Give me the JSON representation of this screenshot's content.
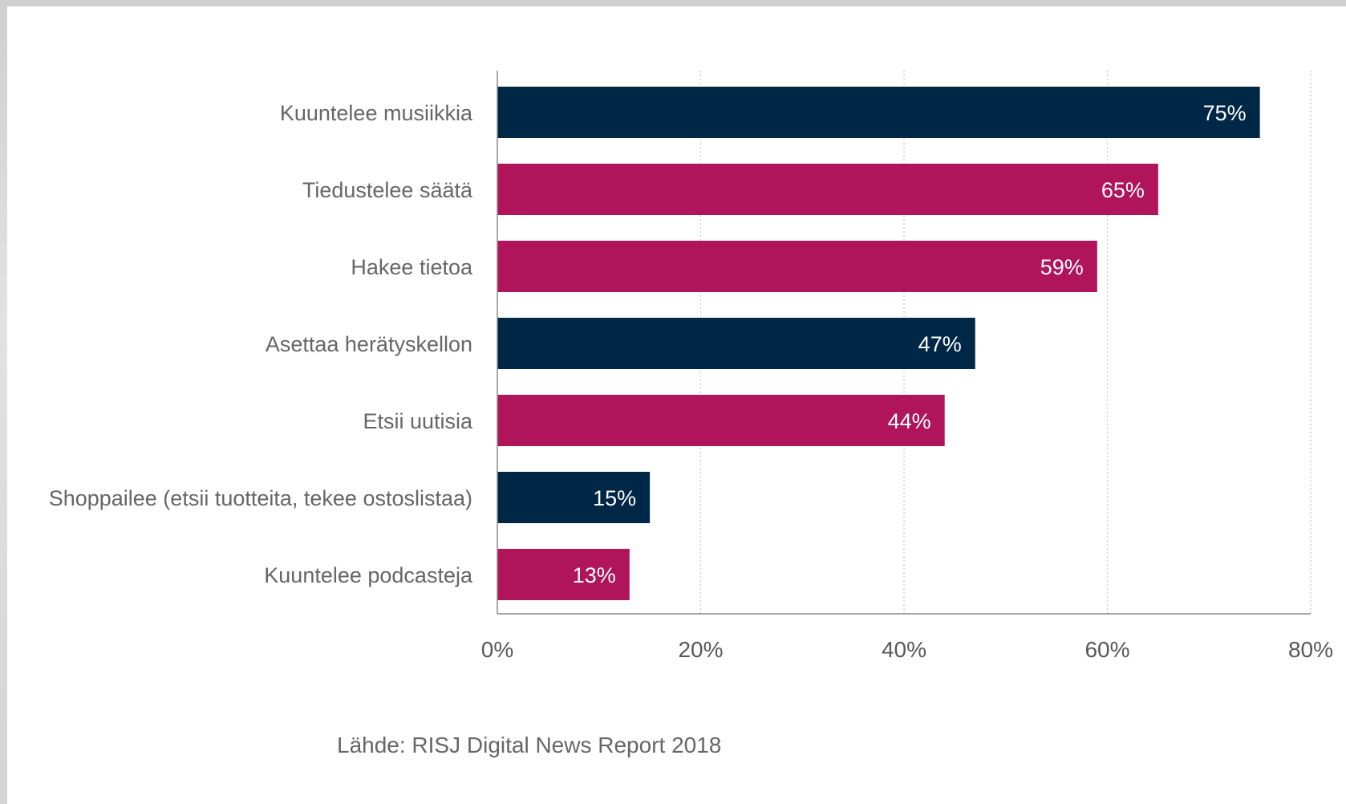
{
  "source_note": "Lähde: RISJ Digital News Report 2018",
  "colors": {
    "navy": "#002846",
    "magenta": "#B0145B",
    "axis_text": "#595959",
    "category_text": "#666666",
    "value_label": "#ffffff",
    "gridline": "#c8c8c8",
    "axis_line": "#8c8c8c"
  },
  "chart_data": {
    "type": "bar",
    "orientation": "horizontal",
    "title": "",
    "xlabel": "",
    "ylabel": "",
    "xlim": [
      0,
      80
    ],
    "x_ticks": [
      0,
      20,
      40,
      60,
      80
    ],
    "x_tick_labels": [
      "0%",
      "20%",
      "40%",
      "60%",
      "80%"
    ],
    "grid": "vertical dotted",
    "legend": "none",
    "categories": [
      "Kuuntelee musiikkia",
      "Tiedustelee säätä",
      "Hakee tietoa",
      "Asettaa herätyskellon",
      "Etsii uutisia",
      "Shoppailee (etsii tuotteita, tekee ostoslistaa)",
      "Kuuntelee podcasteja"
    ],
    "values": [
      75,
      65,
      59,
      47,
      44,
      15,
      13
    ],
    "value_labels": [
      "75%",
      "65%",
      "59%",
      "47%",
      "44%",
      "15%",
      "13%"
    ],
    "bar_colors": [
      "#002846",
      "#B0145B",
      "#B0145B",
      "#002846",
      "#B0145B",
      "#002846",
      "#B0145B"
    ]
  }
}
